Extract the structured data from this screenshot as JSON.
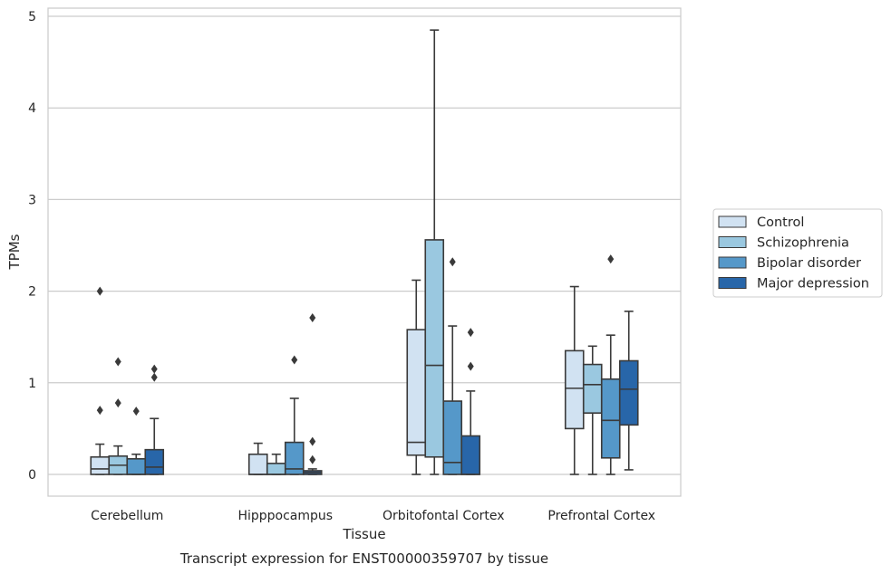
{
  "chart_data": {
    "type": "box",
    "caption": "Transcript expression for ENST00000359707 by tissue",
    "xlabel": "Tissue",
    "ylabel": "TPMs",
    "ylim": [
      -0.23,
      5.1
    ],
    "yticks": [
      "0",
      "1",
      "2",
      "3",
      "4",
      "5"
    ],
    "grid": "horizontal",
    "legend_position": "right",
    "categories": [
      "Cerebellum",
      "Hipppocampus",
      "Orbitofontal Cortex",
      "Prefrontal Cortex"
    ],
    "series": [
      {
        "name": "Control",
        "color": "#d1e2f2",
        "boxes": [
          {
            "whislo": 0,
            "q1": 0,
            "med": 0.06,
            "q3": 0.19,
            "whishi": 0.33,
            "fliers": [
              0.7,
              2.0
            ]
          },
          {
            "whislo": 0,
            "q1": 0,
            "med": 0,
            "q3": 0.22,
            "whishi": 0.34,
            "fliers": []
          },
          {
            "whislo": 0,
            "q1": 0.21,
            "med": 0.35,
            "q3": 1.58,
            "whishi": 2.12,
            "fliers": []
          },
          {
            "whislo": 0,
            "q1": 0.5,
            "med": 0.94,
            "q3": 1.35,
            "whishi": 2.05,
            "fliers": []
          }
        ]
      },
      {
        "name": "Schizophrenia",
        "color": "#9ac8e0",
        "boxes": [
          {
            "whislo": 0,
            "q1": 0,
            "med": 0.1,
            "q3": 0.2,
            "whishi": 0.31,
            "fliers": [
              0.78,
              1.23
            ]
          },
          {
            "whislo": 0,
            "q1": 0,
            "med": 0,
            "q3": 0.12,
            "whishi": 0.22,
            "fliers": []
          },
          {
            "whislo": 0,
            "q1": 0.19,
            "med": 1.19,
            "q3": 2.56,
            "whishi": 4.85,
            "fliers": []
          },
          {
            "whislo": 0,
            "q1": 0.67,
            "med": 0.98,
            "q3": 1.2,
            "whishi": 1.4,
            "fliers": []
          }
        ]
      },
      {
        "name": "Bipolar disorder",
        "color": "#5598c9",
        "boxes": [
          {
            "whislo": 0,
            "q1": 0,
            "med": 0,
            "q3": 0.17,
            "whishi": 0.22,
            "fliers": [
              0.69
            ]
          },
          {
            "whislo": 0,
            "q1": 0,
            "med": 0.06,
            "q3": 0.35,
            "whishi": 0.83,
            "fliers": [
              1.25
            ]
          },
          {
            "whislo": 0,
            "q1": 0,
            "med": 0.13,
            "q3": 0.8,
            "whishi": 1.62,
            "fliers": [
              2.32
            ]
          },
          {
            "whislo": 0,
            "q1": 0.18,
            "med": 0.59,
            "q3": 1.04,
            "whishi": 1.52,
            "fliers": [
              2.35
            ]
          }
        ]
      },
      {
        "name": "Major depression",
        "color": "#2866a9",
        "boxes": [
          {
            "whislo": 0,
            "q1": 0,
            "med": 0.08,
            "q3": 0.27,
            "whishi": 0.61,
            "fliers": [
              1.06,
              1.15
            ]
          },
          {
            "whislo": 0,
            "q1": 0,
            "med": 0.02,
            "q3": 0.04,
            "whishi": 0.06,
            "fliers": [
              0.16,
              0.36,
              1.71
            ]
          },
          {
            "whislo": 0,
            "q1": 0,
            "med": 0,
            "q3": 0.42,
            "whishi": 0.91,
            "fliers": [
              1.18,
              1.55
            ]
          },
          {
            "whislo": 0.05,
            "q1": 0.54,
            "med": 0.93,
            "q3": 1.24,
            "whishi": 1.78,
            "fliers": []
          }
        ]
      }
    ]
  }
}
